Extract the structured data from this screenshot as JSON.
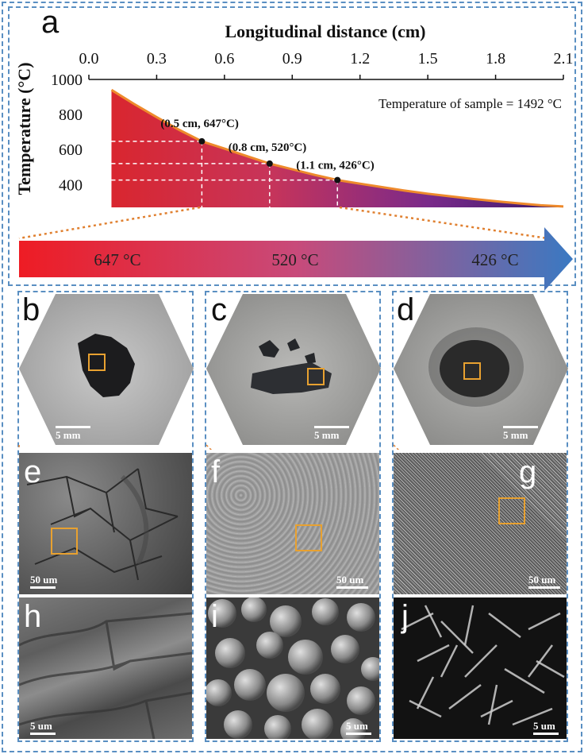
{
  "panel_a": {
    "letter": "a",
    "x_title": "Longitudinal distance (cm)",
    "y_title": "Temperature (°C)",
    "annotation": "Temperature of sample = 1492 °C",
    "chart_data": {
      "type": "area",
      "xlabel": "Longitudinal distance (cm)",
      "ylabel": "Temperature (°C)",
      "xlim": [
        0.0,
        2.1
      ],
      "ylim": [
        270,
        1000
      ],
      "x_ticks": [
        "0.0",
        "0.3",
        "0.6",
        "0.9",
        "1.2",
        "1.5",
        "1.8",
        "2.1"
      ],
      "y_ticks": [
        "1000",
        "800",
        "600",
        "400"
      ],
      "x_tick_values": [
        0.0,
        0.3,
        0.6,
        0.9,
        1.2,
        1.5,
        1.8,
        2.1
      ],
      "y_tick_values": [
        1000,
        800,
        600,
        400
      ],
      "series": [
        {
          "x": [
            0.1,
            0.2,
            0.3,
            0.4,
            0.5,
            0.6,
            0.7,
            0.8,
            0.9,
            1.0,
            1.1,
            1.2,
            1.3,
            1.4,
            1.5,
            1.6,
            1.7,
            1.8,
            1.9,
            2.0,
            2.1
          ],
          "y": [
            940,
            860,
            785,
            712,
            647,
            605,
            562,
            520,
            487,
            455,
            426,
            405,
            385,
            365,
            348,
            333,
            318,
            305,
            293,
            282,
            275
          ]
        }
      ],
      "points": [
        {
          "x": 0.5,
          "y": 647,
          "label": "(0.5 cm, 647°C)"
        },
        {
          "x": 0.8,
          "y": 520,
          "label": "(0.8 cm, 520°C)"
        },
        {
          "x": 1.1,
          "y": 426,
          "label": "(1.1 cm, 426°C)"
        }
      ],
      "fill_colors": [
        "#d9262f",
        "#c7345a",
        "#7a2a8a",
        "#3a1a6a"
      ],
      "line_color": "#ee8a2c"
    }
  },
  "arrow": {
    "labels": [
      "647 °C",
      "520 °C",
      "426 °C"
    ],
    "colors": [
      "#ee1c24",
      "#c84a7a",
      "#3a79c2"
    ]
  },
  "panels": {
    "b": {
      "letter": "b",
      "scale": "5 mm"
    },
    "c": {
      "letter": "c",
      "scale": "5 mm"
    },
    "d": {
      "letter": "d",
      "scale": "5 mm"
    },
    "e": {
      "letter": "e",
      "scale": "50 um"
    },
    "f": {
      "letter": "f",
      "scale": "50 um"
    },
    "g": {
      "letter": "g",
      "scale": "50 um"
    },
    "h": {
      "letter": "h",
      "scale": "5 um"
    },
    "i": {
      "letter": "i",
      "scale": "5 um"
    },
    "j": {
      "letter": "j",
      "scale": "5 um"
    }
  },
  "colors": {
    "frame": "#5a8fc2",
    "highlight": "#e8a130"
  }
}
